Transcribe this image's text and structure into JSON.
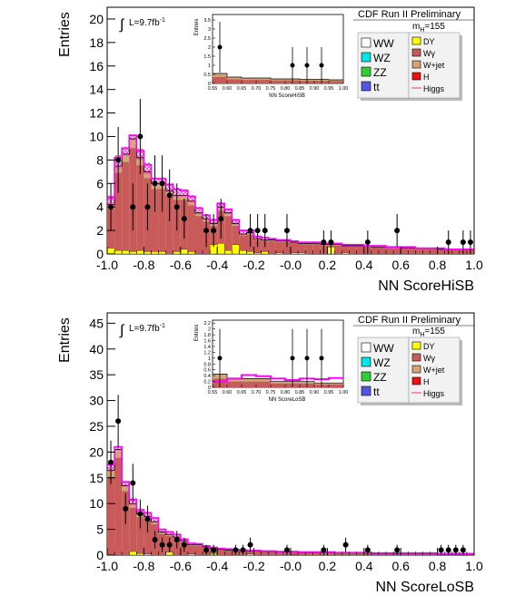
{
  "panels": [
    {
      "id": "hisb",
      "tag": "CDF Run II Preliminary",
      "mass": "m",
      "mass_sub": "H",
      "mass_val": "=155",
      "lumi": "L=9.7fb",
      "lumi_exp": "-1",
      "legend_left": [
        "WW",
        "WZ",
        "ZZ",
        "tt"
      ],
      "legend_right": [
        "DY",
        "Wγ",
        "W+jet",
        "H",
        "Higgs"
      ]
    },
    {
      "id": "losb",
      "tag": "CDF Run II Preliminary",
      "mass": "m",
      "mass_sub": "H",
      "mass_val": "=155",
      "lumi": "L=9.7fb",
      "lumi_exp": "-1",
      "legend_left": [
        "WW",
        "WZ",
        "ZZ",
        "tt"
      ],
      "legend_right": [
        "DY",
        "Wγ",
        "W+jet",
        "H",
        "Higgs"
      ]
    }
  ],
  "colors": {
    "WW": "#ffffff",
    "WZ": "#00e5e5",
    "ZZ": "#33cc33",
    "tt": "#5555dd",
    "DY": "#ffff00",
    "Wgamma": "#c85a5a",
    "Wjet": "#d2a679",
    "H": "#ee1111",
    "Higgs": "#ee3377",
    "signal": "#ff00ff",
    "band": "#ff33cc"
  },
  "chart_data": [
    {
      "type": "bar",
      "variant": "stacked-histogram",
      "ylabel": "Entries",
      "xlabel": "NN ScoreHiSB",
      "xlim": [
        -1.0,
        1.0
      ],
      "ylim": [
        0,
        21
      ],
      "xticks": [
        "-1.0",
        "-0.8",
        "-0.6",
        "-0.4",
        "-0.2",
        "-0.0",
        "0.2",
        "0.4",
        "0.6",
        "0.8",
        "1.0"
      ],
      "yticks": [
        "0",
        "2",
        "4",
        "6",
        "8",
        "10",
        "12",
        "14",
        "16",
        "18",
        "20"
      ],
      "bin_edges_start": -1.0,
      "bin_width": 0.04,
      "total": [
        4.2,
        7.5,
        8.5,
        9.8,
        8.2,
        7.0,
        6.0,
        6.0,
        5.4,
        5.0,
        5.0,
        4.5,
        3.5,
        3.0,
        2.6,
        4.0,
        3.5,
        2.6,
        1.7,
        1.8,
        1.3,
        1.2,
        1.2,
        1.1,
        1.1,
        1.0,
        0.9,
        0.9,
        0.9,
        0.8,
        0.8,
        0.8,
        0.7,
        0.7,
        0.7,
        0.7,
        0.6,
        0.6,
        0.6,
        0.6,
        0.5,
        0.5,
        0.5,
        0.5,
        0.5,
        0.4,
        0.4,
        0.4,
        0.4,
        0.4
      ],
      "yellow": [
        0.5,
        0.3,
        0.3,
        0.2,
        0.3,
        0.2,
        0.2,
        0.2,
        0,
        0.2,
        0.4,
        0.2,
        0,
        0,
        0.8,
        0.9,
        0.3,
        0.8,
        0.3,
        0.2,
        0.1,
        0.2,
        0,
        0.1,
        0,
        0.1,
        0.1,
        0,
        0,
        0,
        0.6,
        0,
        0.1,
        0,
        0,
        0,
        0,
        0,
        0,
        0,
        0,
        0,
        0,
        0,
        0,
        0,
        0,
        0,
        0,
        0
      ],
      "signal": [
        4.8,
        8.2,
        9.0,
        10.1,
        8.8,
        7.6,
        6.4,
        6.4,
        5.9,
        5.5,
        5.4,
        4.9,
        3.9,
        3.3,
        2.9,
        4.3,
        3.8,
        2.9,
        2.0,
        2.0,
        1.5,
        1.4,
        1.3,
        1.2,
        1.2,
        1.1,
        1.0,
        1.0,
        1.0,
        0.9,
        0.9,
        0.9,
        0.8,
        0.8,
        0.8,
        0.7,
        0.7,
        0.7,
        0.6,
        0.6,
        0.6,
        0.6,
        0.5,
        0.5,
        0.5,
        0.5,
        0.4,
        0.4,
        0.4,
        0.4
      ],
      "data_points": [
        {
          "x": -0.98,
          "y": 4,
          "err": 2
        },
        {
          "x": -0.94,
          "y": 8,
          "err": 2.8
        },
        {
          "x": -0.86,
          "y": 4,
          "err": 2
        },
        {
          "x": -0.82,
          "y": 10,
          "err": 3.2
        },
        {
          "x": -0.78,
          "y": 4,
          "err": 2
        },
        {
          "x": -0.74,
          "y": 6,
          "err": 2.4
        },
        {
          "x": -0.7,
          "y": 6,
          "err": 2.4
        },
        {
          "x": -0.66,
          "y": 5,
          "err": 2.2
        },
        {
          "x": -0.62,
          "y": 4,
          "err": 2
        },
        {
          "x": -0.58,
          "y": 3,
          "err": 1.7
        },
        {
          "x": -0.46,
          "y": 2,
          "err": 1.4
        },
        {
          "x": -0.42,
          "y": 2,
          "err": 1.4
        },
        {
          "x": -0.38,
          "y": 3,
          "err": 1.7
        },
        {
          "x": -0.22,
          "y": 2,
          "err": 1.4
        },
        {
          "x": -0.18,
          "y": 2,
          "err": 1.4
        },
        {
          "x": -0.14,
          "y": 2,
          "err": 1.4
        },
        {
          "x": -0.02,
          "y": 2,
          "err": 1.4
        },
        {
          "x": 0.18,
          "y": 1,
          "err": 1
        },
        {
          "x": 0.22,
          "y": 1,
          "err": 1
        },
        {
          "x": 0.42,
          "y": 1,
          "err": 1
        },
        {
          "x": 0.58,
          "y": 2,
          "err": 1.4
        },
        {
          "x": 0.86,
          "y": 1,
          "err": 1
        },
        {
          "x": 0.94,
          "y": 1,
          "err": 1
        },
        {
          "x": 0.98,
          "y": 1,
          "err": 1
        }
      ],
      "inset": {
        "ylabel": "Entries",
        "xlabel": "NN ScoreHiSB",
        "xlim": [
          0.55,
          1.0
        ],
        "ylim": [
          0,
          3.8
        ],
        "xticks": [
          "0.55",
          "0.60",
          "0.65",
          "0.70",
          "0.75",
          "0.80",
          "0.85",
          "0.90",
          "0.95",
          "1.00"
        ],
        "yticks": [
          "0",
          "0.5",
          "1",
          "1.5",
          "2",
          "2.5",
          "3",
          "3.5"
        ],
        "total": [
          0.55,
          0.35,
          0.3,
          0.3,
          0.25,
          0.25,
          0.22,
          0.22,
          0.2
        ],
        "data_points": [
          {
            "x": 0.575,
            "y": 2,
            "err": 1.4
          },
          {
            "x": 0.825,
            "y": 1,
            "err": 1
          },
          {
            "x": 0.875,
            "y": 1,
            "err": 1
          },
          {
            "x": 0.925,
            "y": 1,
            "err": 1
          }
        ]
      }
    },
    {
      "type": "bar",
      "variant": "stacked-histogram",
      "ylabel": "Entries",
      "xlabel": "NN ScoreLoSB",
      "xlim": [
        -1.0,
        1.0
      ],
      "ylim": [
        0,
        47
      ],
      "xticks": [
        "-1.0",
        "-0.8",
        "-0.6",
        "-0.4",
        "-0.2",
        "-0.0",
        "0.2",
        "0.4",
        "0.6",
        "0.8",
        "1.0"
      ],
      "yticks": [
        "0",
        "5",
        "10",
        "15",
        "20",
        "25",
        "30",
        "35",
        "40",
        "45"
      ],
      "bin_edges_start": -1.0,
      "bin_width": 0.04,
      "total": [
        16.5,
        20.5,
        13.5,
        10.0,
        8.0,
        7.5,
        6.5,
        4.5,
        4.0,
        3.5,
        2.8,
        2.0,
        2.0,
        1.6,
        1.3,
        1.1,
        1.0,
        0.9,
        0.9,
        0.8,
        0.8,
        0.7,
        0.7,
        0.6,
        0.6,
        0.6,
        0.5,
        0.5,
        0.5,
        0.5,
        0.5,
        0.4,
        0.4,
        0.4,
        0.4,
        0.4,
        0.3,
        0.3,
        0.3,
        0.3,
        0.3,
        0.3,
        0.3,
        0.3,
        0.3,
        0.2,
        0.2,
        0.2,
        0.2,
        0.2
      ],
      "yellow": [
        0,
        0,
        0,
        0.7,
        0.3,
        0.2,
        0,
        0,
        0.6,
        0,
        0,
        0.2,
        0,
        0,
        0.3,
        0,
        0,
        0,
        0,
        0.2,
        0,
        0,
        0,
        0,
        0,
        0.1,
        0,
        0,
        0,
        0,
        0,
        0,
        0,
        0,
        0,
        0,
        0,
        0,
        0,
        0,
        0,
        0,
        0,
        0,
        0,
        0,
        0,
        0,
        0,
        0
      ],
      "signal": [
        17.5,
        21.0,
        14.2,
        10.8,
        8.8,
        8.2,
        7.2,
        5.0,
        4.5,
        4.0,
        3.1,
        2.3,
        2.2,
        1.8,
        1.5,
        1.3,
        1.2,
        1.1,
        1.0,
        0.9,
        0.9,
        0.8,
        0.8,
        0.7,
        0.7,
        0.7,
        0.6,
        0.6,
        0.6,
        0.6,
        0.6,
        0.5,
        0.5,
        0.5,
        0.5,
        0.5,
        0.4,
        0.4,
        0.4,
        0.4,
        0.4,
        0.4,
        0.4,
        0.4,
        0.4,
        0.3,
        0.3,
        0.3,
        0.3,
        0.3
      ],
      "data_points": [
        {
          "x": -0.98,
          "y": 18,
          "err": 4.2
        },
        {
          "x": -0.94,
          "y": 26,
          "err": 5.1
        },
        {
          "x": -0.9,
          "y": 9,
          "err": 3
        },
        {
          "x": -0.86,
          "y": 14,
          "err": 3.7
        },
        {
          "x": -0.82,
          "y": 8,
          "err": 2.8
        },
        {
          "x": -0.78,
          "y": 7,
          "err": 2.6
        },
        {
          "x": -0.74,
          "y": 3,
          "err": 1.7
        },
        {
          "x": -0.7,
          "y": 2,
          "err": 1.4
        },
        {
          "x": -0.66,
          "y": 2,
          "err": 1.4
        },
        {
          "x": -0.62,
          "y": 3,
          "err": 1.7
        },
        {
          "x": -0.58,
          "y": 2,
          "err": 1.4
        },
        {
          "x": -0.46,
          "y": 1,
          "err": 1
        },
        {
          "x": -0.42,
          "y": 1,
          "err": 1
        },
        {
          "x": -0.3,
          "y": 1,
          "err": 1
        },
        {
          "x": -0.26,
          "y": 1,
          "err": 1
        },
        {
          "x": -0.22,
          "y": 2,
          "err": 1.4
        },
        {
          "x": -0.02,
          "y": 1,
          "err": 1
        },
        {
          "x": 0.18,
          "y": 1,
          "err": 1
        },
        {
          "x": 0.3,
          "y": 2,
          "err": 1.4
        },
        {
          "x": 0.42,
          "y": 1,
          "err": 1
        },
        {
          "x": 0.58,
          "y": 1,
          "err": 1
        },
        {
          "x": 0.82,
          "y": 1,
          "err": 1
        },
        {
          "x": 0.86,
          "y": 1,
          "err": 1
        },
        {
          "x": 0.9,
          "y": 1,
          "err": 1
        },
        {
          "x": 0.94,
          "y": 1,
          "err": 1
        }
      ],
      "inset": {
        "ylabel": "Entries",
        "xlabel": "NN ScoreLoSB",
        "xlim": [
          0.55,
          1.0
        ],
        "ylim": [
          0,
          2.3
        ],
        "xticks": [
          "0.55",
          "0.60",
          "0.65",
          "0.70",
          "0.75",
          "0.80",
          "0.85",
          "0.90",
          "0.95",
          "1.00"
        ],
        "yticks": [
          "0",
          "0.2",
          "0.4",
          "0.6",
          "0.8",
          "1",
          "1.2",
          "1.4",
          "1.6",
          "1.8",
          "2",
          "2.2"
        ],
        "total": [
          0.45,
          0.3,
          0.3,
          0.3,
          0.2,
          0.2,
          0.2,
          0.15,
          0.15
        ],
        "signal": [
          0.2,
          0.3,
          0.42,
          0.38,
          0.3,
          0.25,
          0.3,
          0.28,
          0.32
        ],
        "data_points": [
          {
            "x": 0.575,
            "y": 1,
            "err": 1
          },
          {
            "x": 0.825,
            "y": 1,
            "err": 1
          },
          {
            "x": 0.875,
            "y": 1,
            "err": 1
          },
          {
            "x": 0.925,
            "y": 1,
            "err": 1
          }
        ]
      }
    }
  ]
}
